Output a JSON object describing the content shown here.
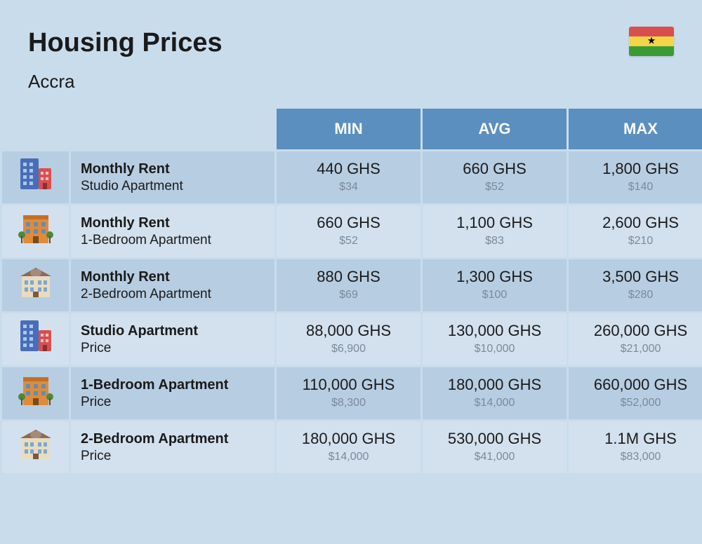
{
  "header": {
    "title": "Housing Prices",
    "subtitle": "Accra",
    "flag": {
      "top_color": "#d94f4f",
      "mid_color": "#f5d547",
      "bot_color": "#3a9b35",
      "star_color": "#000000"
    }
  },
  "table": {
    "header_bg": "#5a8fbf",
    "row_bg": "#b7cde2",
    "row_alt_bg": "#d3e1ee",
    "page_bg": "#c9dcec",
    "text_color": "#1a1a1a",
    "sub_color": "#7a8a99",
    "columns": [
      "",
      "",
      "MIN",
      "AVG",
      "MAX"
    ],
    "rows": [
      {
        "icon": "building-tall",
        "label_main": "Monthly Rent",
        "label_sub": "Studio Apartment",
        "min": {
          "ghs": "440 GHS",
          "usd": "$34"
        },
        "avg": {
          "ghs": "660 GHS",
          "usd": "$52"
        },
        "max": {
          "ghs": "1,800 GHS",
          "usd": "$140"
        }
      },
      {
        "icon": "building-orange",
        "label_main": "Monthly Rent",
        "label_sub": "1-Bedroom Apartment",
        "min": {
          "ghs": "660 GHS",
          "usd": "$52"
        },
        "avg": {
          "ghs": "1,100 GHS",
          "usd": "$83"
        },
        "max": {
          "ghs": "2,600 GHS",
          "usd": "$210"
        }
      },
      {
        "icon": "house-beige",
        "label_main": "Monthly Rent",
        "label_sub": "2-Bedroom Apartment",
        "min": {
          "ghs": "880 GHS",
          "usd": "$69"
        },
        "avg": {
          "ghs": "1,300 GHS",
          "usd": "$100"
        },
        "max": {
          "ghs": "3,500 GHS",
          "usd": "$280"
        }
      },
      {
        "icon": "building-tall",
        "label_main": "Studio Apartment",
        "label_sub": "Price",
        "min": {
          "ghs": "88,000 GHS",
          "usd": "$6,900"
        },
        "avg": {
          "ghs": "130,000 GHS",
          "usd": "$10,000"
        },
        "max": {
          "ghs": "260,000 GHS",
          "usd": "$21,000"
        }
      },
      {
        "icon": "building-orange",
        "label_main": "1-Bedroom Apartment",
        "label_sub": "Price",
        "min": {
          "ghs": "110,000 GHS",
          "usd": "$8,300"
        },
        "avg": {
          "ghs": "180,000 GHS",
          "usd": "$14,000"
        },
        "max": {
          "ghs": "660,000 GHS",
          "usd": "$52,000"
        }
      },
      {
        "icon": "house-beige",
        "label_main": "2-Bedroom Apartment",
        "label_sub": "Price",
        "min": {
          "ghs": "180,000 GHS",
          "usd": "$14,000"
        },
        "avg": {
          "ghs": "530,000 GHS",
          "usd": "$41,000"
        },
        "max": {
          "ghs": "1.1M GHS",
          "usd": "$83,000"
        }
      }
    ]
  },
  "icons": {
    "building-tall": "svg-building-tall",
    "building-orange": "svg-building-orange",
    "house-beige": "svg-house-beige"
  }
}
